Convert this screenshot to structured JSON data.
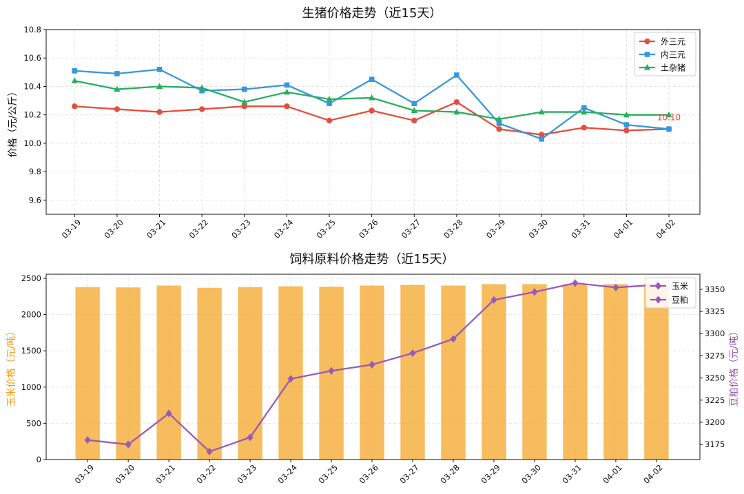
{
  "chart_data": [
    {
      "type": "line",
      "title": "生猪价格走势（近15天）",
      "xlabel": "",
      "ylabel": "价格（元/公斤）",
      "x": [
        "03-19",
        "03-20",
        "03-21",
        "03-22",
        "03-23",
        "03-24",
        "03-25",
        "03-26",
        "03-27",
        "03-28",
        "03-29",
        "03-30",
        "03-31",
        "04-01",
        "04-02"
      ],
      "ylim": [
        9.5,
        10.8
      ],
      "yticks": [
        9.6,
        9.8,
        10.0,
        10.2,
        10.4,
        10.6,
        10.8
      ],
      "ytick_labels": [
        "9.6",
        "9.8",
        "10.0",
        "10.2",
        "10.4",
        "10.6",
        "10.8"
      ],
      "grid": true,
      "legend": "top-right",
      "series": [
        {
          "name": "外三元",
          "color": "#e74c3c",
          "marker": "circle",
          "values": [
            10.26,
            10.24,
            10.22,
            10.24,
            10.26,
            10.26,
            10.16,
            10.23,
            10.16,
            10.29,
            10.1,
            10.06,
            10.11,
            10.09,
            10.1
          ]
        },
        {
          "name": "内三元",
          "color": "#3498db",
          "marker": "square",
          "values": [
            10.51,
            10.49,
            10.52,
            10.37,
            10.38,
            10.41,
            10.28,
            10.45,
            10.28,
            10.48,
            10.14,
            10.03,
            10.25,
            10.13,
            10.1
          ]
        },
        {
          "name": "土杂猪",
          "color": "#27ae60",
          "marker": "triangle",
          "values": [
            10.44,
            10.38,
            10.4,
            10.39,
            10.29,
            10.36,
            10.31,
            10.32,
            10.23,
            10.22,
            10.17,
            10.22,
            10.22,
            10.2,
            10.2
          ]
        }
      ],
      "annotations": [
        {
          "text": "10.10",
          "x": "04-02",
          "y": 10.1,
          "color": "#e74c3c"
        }
      ]
    },
    {
      "type": "bar",
      "title": "饲料原料价格走势（近15天）",
      "xlabel": "",
      "ylabel": "玉米价格（元/吨）",
      "ylabel_color": "#f39c12",
      "ylabel_right": "豆粕价格（元/吨）",
      "ylabel_right_color": "#9b59b6",
      "x": [
        "03-19",
        "03-20",
        "03-21",
        "03-22",
        "03-23",
        "03-24",
        "03-25",
        "03-26",
        "03-27",
        "03-28",
        "03-29",
        "03-30",
        "03-31",
        "04-01",
        "04-02"
      ],
      "ylim": [
        0,
        2557
      ],
      "yticks": [
        0,
        500,
        1000,
        1500,
        2000,
        2500
      ],
      "ytick_labels": [
        "0",
        "500",
        "1000",
        "1500",
        "2000",
        "2500"
      ],
      "ylim_right": [
        3158,
        3367
      ],
      "yticks_right": [
        3175,
        3200,
        3225,
        3250,
        3275,
        3300,
        3325,
        3350
      ],
      "ytick_labels_right": [
        "3175",
        "3200",
        "3225",
        "3250",
        "3275",
        "3300",
        "3325",
        "3350"
      ],
      "grid": true,
      "series": [
        {
          "name": "玉米",
          "kind": "bar",
          "axis": "left",
          "color": "#f5b041",
          "values": [
            2380,
            2375,
            2400,
            2370,
            2380,
            2390,
            2385,
            2400,
            2410,
            2400,
            2420,
            2420,
            2420,
            2420,
            2425
          ]
        },
        {
          "name": "豆粕",
          "kind": "line",
          "axis": "right",
          "color": "#9b59b6",
          "marker": "diamond",
          "values": [
            3180,
            3175,
            3210,
            3167,
            3183,
            3249,
            3258,
            3265,
            3278,
            3294,
            3338,
            3347,
            3357,
            3352,
            3355
          ]
        }
      ],
      "legend": {
        "position": "top-right",
        "entries": [
          {
            "label": "玉米",
            "color": "#9b59b6",
            "marker": "diamond"
          },
          {
            "label": "豆粕",
            "color": "#9b59b6",
            "marker": "diamond"
          }
        ]
      }
    }
  ]
}
